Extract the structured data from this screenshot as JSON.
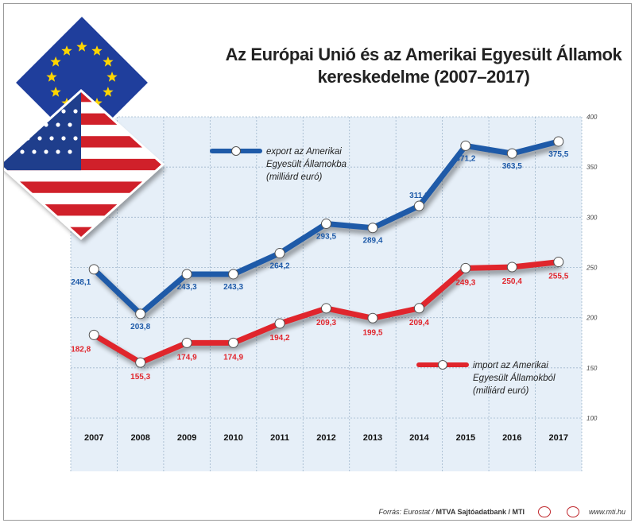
{
  "title_lines": [
    "Az Európai Unió és az Amerikai Egyesült Államok",
    "kereskedelme (2007–2017)"
  ],
  "chart_data": {
    "type": "line",
    "categories": [
      "2007",
      "2008",
      "2009",
      "2010",
      "2011",
      "2012",
      "2013",
      "2014",
      "2015",
      "2016",
      "2017"
    ],
    "ylim": [
      100,
      400
    ],
    "yticks": [
      100,
      150,
      200,
      250,
      300,
      350,
      400
    ],
    "grid": true,
    "series": [
      {
        "key": "export",
        "label_lines": [
          "export az Amerikai",
          "Egyesült Államokba",
          "(milliárd euró)"
        ],
        "color": "#1e5aa8",
        "values": [
          248.1,
          203.8,
          243.3,
          243.3,
          264.2,
          293.5,
          289.4,
          311.3,
          371.2,
          363.5,
          375.5
        ],
        "value_labels": [
          "248,1",
          "203,8",
          "243,3",
          "243,3",
          "264,2",
          "293,5",
          "289,4",
          "311,3",
          "371,2",
          "363,5",
          "375,5"
        ]
      },
      {
        "key": "import",
        "label_lines": [
          "import az Amerikai",
          "Egyesült Államokból",
          "(milliárd euró)"
        ],
        "color": "#e0252c",
        "values": [
          182.8,
          155.3,
          174.9,
          174.9,
          194.2,
          209.3,
          199.5,
          209.4,
          249.3,
          250.4,
          255.5
        ],
        "value_labels": [
          "182,8",
          "155,3",
          "174,9",
          "174,9",
          "194,2",
          "209,3",
          "199,5",
          "209,4",
          "249,3",
          "250,4",
          "255,5"
        ]
      }
    ]
  },
  "footer": {
    "source_prefix": "Forrás: Eurostat / ",
    "source_bold": "MTVA Sajtóadatbank / MTI",
    "site": "www.mti.hu"
  },
  "colors": {
    "plot_bg": "#e6eff8",
    "grid": "#9fb6cc",
    "eu_blue": "#1f3e9c",
    "eu_star": "#ffd500",
    "us_red": "#d0202a",
    "us_blue": "#1f3e8c"
  },
  "icons": [
    "eu-flag-icon",
    "us-flag-icon",
    "mtva-logo-icon",
    "mti-logo-icon"
  ]
}
